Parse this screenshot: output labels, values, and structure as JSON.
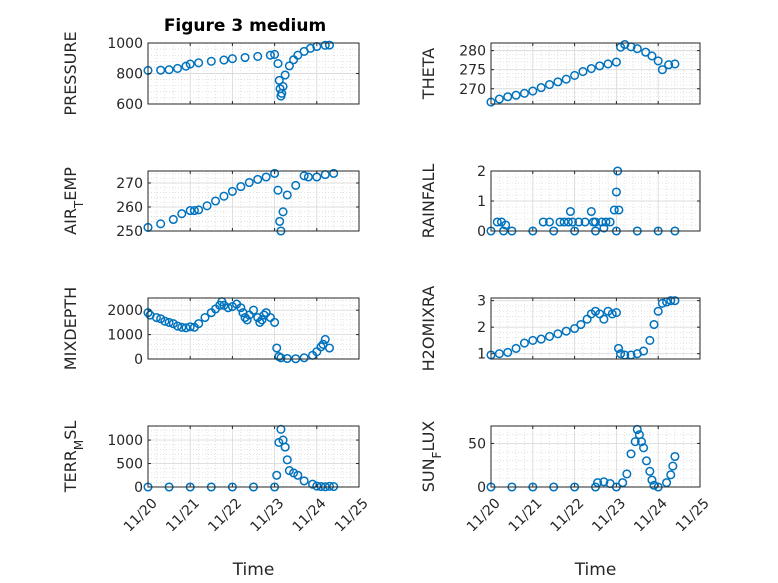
{
  "figure": {
    "title": "Figure 3 medium"
  },
  "chart_data": [
    {
      "id": "pressure",
      "type": "scatter",
      "ylabel": "PRESSURE",
      "xlabel": "",
      "show_xticks": false,
      "ylim": [
        600,
        1000
      ],
      "yticks": [
        600,
        800,
        1000
      ],
      "xlim": [
        "11/20",
        "11/25"
      ],
      "grid": true,
      "marker_color": "#0072BD",
      "marker": "circle-open",
      "points": [
        [
          0.0,
          820
        ],
        [
          0.3,
          822
        ],
        [
          0.5,
          825
        ],
        [
          0.7,
          833
        ],
        [
          0.9,
          848
        ],
        [
          1.0,
          862
        ],
        [
          1.2,
          870
        ],
        [
          1.5,
          880
        ],
        [
          1.8,
          888
        ],
        [
          2.0,
          897
        ],
        [
          2.3,
          905
        ],
        [
          2.6,
          912
        ],
        [
          2.9,
          920
        ],
        [
          3.0,
          925
        ],
        [
          3.08,
          865
        ],
        [
          3.11,
          755
        ],
        [
          3.13,
          700
        ],
        [
          3.15,
          652
        ],
        [
          3.17,
          670
        ],
        [
          3.2,
          715
        ],
        [
          3.25,
          790
        ],
        [
          3.35,
          850
        ],
        [
          3.45,
          890
        ],
        [
          3.55,
          920
        ],
        [
          3.7,
          945
        ],
        [
          3.85,
          965
        ],
        [
          4.0,
          977
        ],
        [
          4.2,
          985
        ],
        [
          4.3,
          986
        ]
      ]
    },
    {
      "id": "theta",
      "type": "scatter",
      "ylabel": "THETA",
      "xlabel": "",
      "show_xticks": false,
      "ylim": [
        266,
        282
      ],
      "yticks": [
        270,
        275,
        280
      ],
      "xlim": [
        "11/20",
        "11/25"
      ],
      "grid": true,
      "marker_color": "#0072BD",
      "marker": "circle-open",
      "points": [
        [
          0.0,
          266.5
        ],
        [
          0.2,
          267.3
        ],
        [
          0.4,
          267.9
        ],
        [
          0.6,
          268.3
        ],
        [
          0.8,
          268.8
        ],
        [
          1.0,
          269.4
        ],
        [
          1.2,
          270.3
        ],
        [
          1.4,
          271.1
        ],
        [
          1.6,
          271.8
        ],
        [
          1.8,
          272.5
        ],
        [
          2.0,
          273.5
        ],
        [
          2.2,
          274.5
        ],
        [
          2.4,
          275.3
        ],
        [
          2.6,
          276.0
        ],
        [
          2.8,
          276.5
        ],
        [
          3.0,
          277.0
        ],
        [
          3.1,
          280.9
        ],
        [
          3.2,
          281.6
        ],
        [
          3.35,
          281.0
        ],
        [
          3.5,
          280.5
        ],
        [
          3.7,
          279.6
        ],
        [
          3.85,
          278.6
        ],
        [
          4.0,
          277.3
        ],
        [
          4.1,
          275.0
        ],
        [
          4.25,
          276.3
        ],
        [
          4.4,
          276.5
        ]
      ]
    },
    {
      "id": "air_temp",
      "type": "scatter",
      "ylabel": "AIR_TEMP",
      "xlabel": "",
      "show_xticks": false,
      "ylim": [
        250,
        275
      ],
      "yticks": [
        250,
        260,
        270
      ],
      "xlim": [
        "11/20",
        "11/25"
      ],
      "grid": true,
      "marker_color": "#0072BD",
      "marker": "circle-open",
      "points": [
        [
          0.0,
          251.5
        ],
        [
          0.3,
          253
        ],
        [
          0.6,
          254.8
        ],
        [
          0.8,
          257.2
        ],
        [
          1.0,
          258.5
        ],
        [
          1.1,
          258.5
        ],
        [
          1.2,
          258.8
        ],
        [
          1.4,
          260.5
        ],
        [
          1.6,
          262.5
        ],
        [
          1.8,
          264.5
        ],
        [
          2.0,
          266.5
        ],
        [
          2.2,
          268.5
        ],
        [
          2.4,
          270.2
        ],
        [
          2.6,
          271.5
        ],
        [
          2.8,
          272.5
        ],
        [
          3.0,
          274
        ],
        [
          3.08,
          267
        ],
        [
          3.12,
          254
        ],
        [
          3.15,
          250
        ],
        [
          3.2,
          258
        ],
        [
          3.3,
          265
        ],
        [
          3.5,
          269
        ],
        [
          3.7,
          273
        ],
        [
          3.8,
          272.5
        ],
        [
          4.0,
          272.5
        ],
        [
          4.2,
          273.5
        ],
        [
          4.4,
          274
        ]
      ]
    },
    {
      "id": "rainfall",
      "type": "scatter",
      "ylabel": "RAINFALL",
      "xlabel": "",
      "show_xticks": false,
      "ylim": [
        0,
        2
      ],
      "yticks": [
        0,
        1,
        2
      ],
      "xlim": [
        "11/20",
        "11/25"
      ],
      "grid": true,
      "marker_color": "#0072BD",
      "marker": "circle-open",
      "points": [
        [
          0.0,
          0
        ],
        [
          0.3,
          0
        ],
        [
          0.5,
          0
        ],
        [
          1.0,
          0
        ],
        [
          1.5,
          0
        ],
        [
          2.0,
          0
        ],
        [
          2.5,
          0
        ],
        [
          3.0,
          0
        ],
        [
          3.5,
          0
        ],
        [
          4.0,
          0
        ],
        [
          4.4,
          0
        ],
        [
          0.15,
          0.3
        ],
        [
          0.25,
          0.3
        ],
        [
          0.35,
          0.2
        ],
        [
          1.25,
          0.3
        ],
        [
          1.4,
          0.3
        ],
        [
          1.65,
          0.3
        ],
        [
          1.75,
          0.3
        ],
        [
          1.85,
          0.3
        ],
        [
          1.9,
          0.65
        ],
        [
          1.95,
          0.3
        ],
        [
          2.1,
          0.3
        ],
        [
          2.25,
          0.3
        ],
        [
          2.4,
          0.65
        ],
        [
          2.45,
          0.3
        ],
        [
          2.5,
          0.3
        ],
        [
          2.65,
          0.3
        ],
        [
          2.75,
          0.3
        ],
        [
          2.85,
          0.3
        ],
        [
          2.95,
          0.7
        ],
        [
          3.0,
          1.3
        ],
        [
          3.03,
          2.0
        ],
        [
          3.06,
          0.7
        ],
        [
          2.7,
          0.1
        ]
      ]
    },
    {
      "id": "mixdepth",
      "type": "scatter",
      "ylabel": "MIXDEPTH",
      "xlabel": "",
      "show_xticks": false,
      "ylim": [
        0,
        2500
      ],
      "yticks": [
        0,
        1000,
        2000
      ],
      "xlim": [
        "11/20",
        "11/25"
      ],
      "grid": true,
      "marker_color": "#0072BD",
      "marker": "circle-open",
      "points": [
        [
          0.0,
          1900
        ],
        [
          0.05,
          1800
        ],
        [
          0.2,
          1700
        ],
        [
          0.3,
          1650
        ],
        [
          0.4,
          1550
        ],
        [
          0.5,
          1500
        ],
        [
          0.6,
          1450
        ],
        [
          0.7,
          1350
        ],
        [
          0.8,
          1300
        ],
        [
          0.9,
          1280
        ],
        [
          1.0,
          1320
        ],
        [
          1.1,
          1300
        ],
        [
          1.2,
          1450
        ],
        [
          1.35,
          1700
        ],
        [
          1.5,
          1900
        ],
        [
          1.6,
          2050
        ],
        [
          1.7,
          2200
        ],
        [
          1.75,
          2350
        ],
        [
          1.8,
          2200
        ],
        [
          1.9,
          2100
        ],
        [
          2.0,
          2150
        ],
        [
          2.1,
          2250
        ],
        [
          2.2,
          2100
        ],
        [
          2.25,
          1900
        ],
        [
          2.3,
          1700
        ],
        [
          2.35,
          1600
        ],
        [
          2.4,
          1800
        ],
        [
          2.5,
          2000
        ],
        [
          2.6,
          1700
        ],
        [
          2.65,
          1500
        ],
        [
          2.7,
          1600
        ],
        [
          2.75,
          1800
        ],
        [
          2.8,
          1900
        ],
        [
          2.9,
          1700
        ],
        [
          3.0,
          1500
        ],
        [
          3.05,
          450
        ],
        [
          3.1,
          100
        ],
        [
          3.15,
          50
        ],
        [
          3.3,
          20
        ],
        [
          3.5,
          10
        ],
        [
          3.7,
          50
        ],
        [
          3.9,
          150
        ],
        [
          4.0,
          300
        ],
        [
          4.1,
          500
        ],
        [
          4.15,
          600
        ],
        [
          4.2,
          800
        ],
        [
          4.3,
          450
        ]
      ]
    },
    {
      "id": "h2omixra",
      "type": "scatter",
      "ylabel": "H2OMIXRA",
      "xlabel": "",
      "show_xticks": false,
      "ylim": [
        0.8,
        3.1
      ],
      "yticks": [
        1,
        2,
        3
      ],
      "xlim": [
        "11/20",
        "11/25"
      ],
      "grid": true,
      "marker_color": "#0072BD",
      "marker": "circle-open",
      "points": [
        [
          0.0,
          0.95
        ],
        [
          0.2,
          1.0
        ],
        [
          0.4,
          1.05
        ],
        [
          0.6,
          1.2
        ],
        [
          0.8,
          1.4
        ],
        [
          1.0,
          1.5
        ],
        [
          1.2,
          1.55
        ],
        [
          1.4,
          1.65
        ],
        [
          1.6,
          1.75
        ],
        [
          1.8,
          1.85
        ],
        [
          2.0,
          1.95
        ],
        [
          2.15,
          2.1
        ],
        [
          2.3,
          2.3
        ],
        [
          2.4,
          2.5
        ],
        [
          2.5,
          2.6
        ],
        [
          2.6,
          2.5
        ],
        [
          2.7,
          2.3
        ],
        [
          2.8,
          2.6
        ],
        [
          2.9,
          2.5
        ],
        [
          3.0,
          2.55
        ],
        [
          3.05,
          1.2
        ],
        [
          3.1,
          1.0
        ],
        [
          3.2,
          0.95
        ],
        [
          3.35,
          0.95
        ],
        [
          3.5,
          1.0
        ],
        [
          3.65,
          1.1
        ],
        [
          3.8,
          1.5
        ],
        [
          3.9,
          2.1
        ],
        [
          4.0,
          2.6
        ],
        [
          4.1,
          2.9
        ],
        [
          4.2,
          2.95
        ],
        [
          4.3,
          3.0
        ],
        [
          4.4,
          3.0
        ]
      ]
    },
    {
      "id": "terr_msl",
      "type": "scatter",
      "ylabel": "TERR_MSL",
      "xlabel": "Time",
      "show_xticks": true,
      "ylim": [
        0,
        1300
      ],
      "yticks": [
        0,
        500,
        1000
      ],
      "xlim": [
        "11/20",
        "11/25"
      ],
      "xticks": [
        "11/20",
        "11/21",
        "11/22",
        "11/23",
        "11/24",
        "11/25"
      ],
      "grid": true,
      "marker_color": "#0072BD",
      "marker": "circle-open",
      "points": [
        [
          0.0,
          0
        ],
        [
          0.5,
          0
        ],
        [
          1.0,
          0
        ],
        [
          1.5,
          0
        ],
        [
          2.0,
          0
        ],
        [
          2.5,
          0
        ],
        [
          3.0,
          0
        ],
        [
          3.05,
          250
        ],
        [
          3.1,
          950
        ],
        [
          3.15,
          1230
        ],
        [
          3.2,
          1000
        ],
        [
          3.25,
          850
        ],
        [
          3.3,
          580
        ],
        [
          3.35,
          350
        ],
        [
          3.45,
          300
        ],
        [
          3.55,
          250
        ],
        [
          3.7,
          130
        ],
        [
          3.9,
          60
        ],
        [
          4.0,
          20
        ],
        [
          4.1,
          10
        ],
        [
          4.2,
          5
        ],
        [
          4.3,
          15
        ],
        [
          4.4,
          10
        ]
      ]
    },
    {
      "id": "sun_flux",
      "type": "scatter",
      "ylabel": "SUN_FLUX",
      "xlabel": "Time",
      "show_xticks": true,
      "ylim": [
        0,
        70
      ],
      "yticks": [
        0,
        50
      ],
      "xlim": [
        "11/20",
        "11/25"
      ],
      "xticks": [
        "11/20",
        "11/21",
        "11/22",
        "11/23",
        "11/24",
        "11/25"
      ],
      "grid": true,
      "marker_color": "#0072BD",
      "marker": "circle-open",
      "points": [
        [
          0.0,
          0
        ],
        [
          0.5,
          0
        ],
        [
          1.0,
          0
        ],
        [
          1.5,
          0
        ],
        [
          2.0,
          0
        ],
        [
          2.5,
          0
        ],
        [
          2.55,
          5
        ],
        [
          2.7,
          6
        ],
        [
          2.85,
          4
        ],
        [
          3.0,
          0
        ],
        [
          3.15,
          5
        ],
        [
          3.25,
          15
        ],
        [
          3.35,
          38
        ],
        [
          3.45,
          52
        ],
        [
          3.5,
          66
        ],
        [
          3.55,
          60
        ],
        [
          3.6,
          52
        ],
        [
          3.65,
          45
        ],
        [
          3.72,
          30
        ],
        [
          3.8,
          18
        ],
        [
          3.85,
          8
        ],
        [
          3.9,
          2
        ],
        [
          4.0,
          0
        ],
        [
          4.2,
          5
        ],
        [
          4.3,
          14
        ],
        [
          4.35,
          24
        ],
        [
          4.4,
          35
        ]
      ]
    }
  ]
}
